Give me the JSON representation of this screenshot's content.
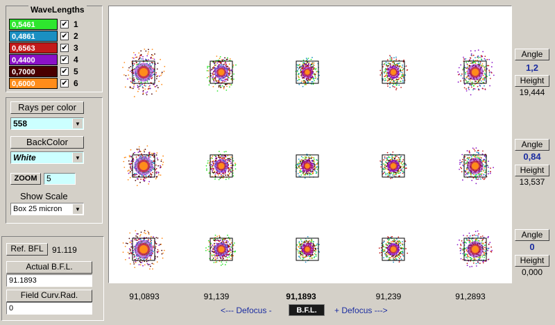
{
  "wavelengths": {
    "title": "WaveLengths",
    "items": [
      {
        "value": "0,5461",
        "index": "1",
        "color": "#2ee62e",
        "checked": true
      },
      {
        "value": "0,4861",
        "index": "2",
        "color": "#1a8fc2",
        "checked": true
      },
      {
        "value": "0,6563",
        "index": "3",
        "color": "#c21a1a",
        "checked": true
      },
      {
        "value": "0,4400",
        "index": "4",
        "color": "#8a12c8",
        "checked": true
      },
      {
        "value": "0,7000",
        "index": "5",
        "color": "#4a0000",
        "checked": true
      },
      {
        "value": "0,6000",
        "index": "6",
        "color": "#ff8c1a",
        "checked": true
      }
    ]
  },
  "rays": {
    "label": "Rays per color",
    "value": "558"
  },
  "backcolor": {
    "label": "BackColor",
    "value": "White"
  },
  "zoom": {
    "label": "ZOOM",
    "value": "5"
  },
  "scale": {
    "label": "Show Scale",
    "value": "Box 25 micron"
  },
  "bfl": {
    "ref_label": "Ref. BFL",
    "ref_value": "91.119",
    "actual_label": "Actual B.F.L.",
    "actual_value": "91.1893",
    "curv_label": "Field Curv.Rad.",
    "curv_value": "0"
  },
  "focus_values": [
    "91,0893",
    "91,139",
    "91,1893",
    "91,239",
    "91,2893"
  ],
  "nav": {
    "defocus_minus": "<--- Defocus -",
    "bfl": "B.F.L.",
    "defocus_plus": "+ Defocus --->"
  },
  "fields": [
    {
      "angle_label": "Angle",
      "angle": "1,2",
      "height_label": "Height",
      "height": "19,444"
    },
    {
      "angle_label": "Angle",
      "angle": "0,84",
      "height_label": "Height",
      "height": "13,537"
    },
    {
      "angle_label": "Angle",
      "angle": "0",
      "height_label": "Height",
      "height": "0,000"
    }
  ]
}
